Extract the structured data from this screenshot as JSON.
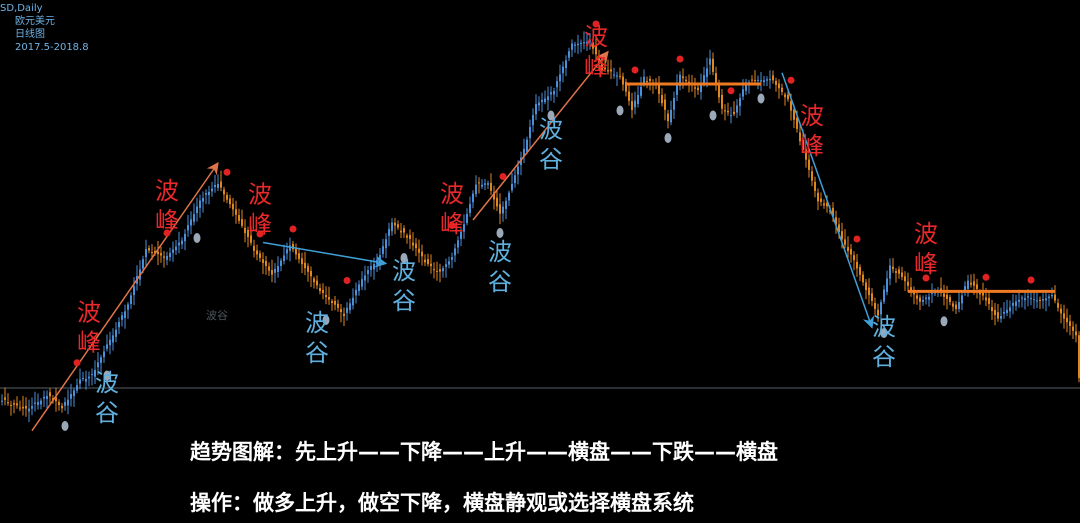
{
  "header": {
    "symbol": "SD,Daily",
    "name": "欧元美元",
    "chart_kind": "日线图",
    "period": "2017.5-2018.8"
  },
  "captions": {
    "line1": "趋势图解：先上升——下降——上升——横盘——下跌——横盘",
    "line2": "操作：做多上升，做空下降，横盘静观或选择横盘系统"
  },
  "colors": {
    "background": "#000000",
    "bull_candle": "#4a90d9",
    "bear_candle": "#e0861f",
    "peak_label": "#e8282a",
    "trough_label": "#5fb0de",
    "uptrend_arrow": "#e0744a",
    "downtrend_arrow": "#3f9fd6",
    "range_line": "#f07a22",
    "peak_dot": "#e02222",
    "trough_dot": "#9aa8b8",
    "baseline": "#8fa0b0"
  },
  "chart_data": {
    "type": "candlestick",
    "price_path": [
      {
        "i": 0,
        "p": 400
      },
      {
        "i": 8,
        "p": 410
      },
      {
        "i": 15,
        "p": 395
      },
      {
        "i": 20,
        "p": 408
      },
      {
        "i": 26,
        "p": 380
      },
      {
        "i": 30,
        "p": 375
      },
      {
        "i": 36,
        "p": 340
      },
      {
        "i": 42,
        "p": 305
      },
      {
        "i": 48,
        "p": 250
      },
      {
        "i": 54,
        "p": 258
      },
      {
        "i": 60,
        "p": 240
      },
      {
        "i": 66,
        "p": 200
      },
      {
        "i": 72,
        "p": 183
      },
      {
        "i": 78,
        "p": 215
      },
      {
        "i": 84,
        "p": 250
      },
      {
        "i": 90,
        "p": 275
      },
      {
        "i": 96,
        "p": 245
      },
      {
        "i": 100,
        "p": 265
      },
      {
        "i": 106,
        "p": 290
      },
      {
        "i": 110,
        "p": 302
      },
      {
        "i": 114,
        "p": 315
      },
      {
        "i": 120,
        "p": 278
      },
      {
        "i": 126,
        "p": 255
      },
      {
        "i": 130,
        "p": 222
      },
      {
        "i": 136,
        "p": 240
      },
      {
        "i": 142,
        "p": 265
      },
      {
        "i": 146,
        "p": 272
      },
      {
        "i": 150,
        "p": 258
      },
      {
        "i": 154,
        "p": 225
      },
      {
        "i": 158,
        "p": 185
      },
      {
        "i": 162,
        "p": 182
      },
      {
        "i": 166,
        "p": 215
      },
      {
        "i": 170,
        "p": 185
      },
      {
        "i": 174,
        "p": 150
      },
      {
        "i": 178,
        "p": 105
      },
      {
        "i": 184,
        "p": 90
      },
      {
        "i": 190,
        "p": 45
      },
      {
        "i": 196,
        "p": 40
      },
      {
        "i": 200,
        "p": 70
      },
      {
        "i": 206,
        "p": 75
      },
      {
        "i": 210,
        "p": 110
      },
      {
        "i": 214,
        "p": 78
      },
      {
        "i": 218,
        "p": 85
      },
      {
        "i": 222,
        "p": 120
      },
      {
        "i": 226,
        "p": 75
      },
      {
        "i": 232,
        "p": 90
      },
      {
        "i": 236,
        "p": 60
      },
      {
        "i": 240,
        "p": 110
      },
      {
        "i": 244,
        "p": 115
      },
      {
        "i": 248,
        "p": 82
      },
      {
        "i": 252,
        "p": 80
      },
      {
        "i": 256,
        "p": 78
      },
      {
        "i": 262,
        "p": 100
      },
      {
        "i": 266,
        "p": 140
      },
      {
        "i": 272,
        "p": 200
      },
      {
        "i": 276,
        "p": 210
      },
      {
        "i": 280,
        "p": 240
      },
      {
        "i": 284,
        "p": 260
      },
      {
        "i": 288,
        "p": 290
      },
      {
        "i": 292,
        "p": 315
      },
      {
        "i": 296,
        "p": 265
      },
      {
        "i": 300,
        "p": 278
      },
      {
        "i": 306,
        "p": 302
      },
      {
        "i": 312,
        "p": 290
      },
      {
        "i": 318,
        "p": 310
      },
      {
        "i": 322,
        "p": 280
      },
      {
        "i": 328,
        "p": 300
      },
      {
        "i": 332,
        "p": 320
      },
      {
        "i": 338,
        "p": 300
      },
      {
        "i": 342,
        "p": 296
      },
      {
        "i": 346,
        "p": 300
      },
      {
        "i": 350,
        "p": 295
      },
      {
        "i": 354,
        "p": 318
      },
      {
        "i": 358,
        "p": 335
      },
      {
        "i": 359,
        "p": 378
      }
    ],
    "peaks": [
      {
        "label_top": "波",
        "label_bottom": "峰",
        "index": 29
      },
      {
        "label_top": "波",
        "label_bottom": "峰",
        "index": 55
      },
      {
        "label_top": "波",
        "label_bottom": "峰",
        "index": 86
      },
      {
        "label_top": "波",
        "label_bottom": "峰",
        "index": 150
      },
      {
        "label_top": "波",
        "label_bottom": "峰",
        "index": 198
      },
      {
        "label_top": "波",
        "label_bottom": "峰",
        "index": 270
      },
      {
        "label_top": "波",
        "label_bottom": "峰",
        "index": 308
      }
    ],
    "troughs": [
      {
        "label_top": "波",
        "label_bottom": "谷",
        "index": 35
      },
      {
        "label_top": "波",
        "label_bottom": "谷",
        "index": 105
      },
      {
        "label_top": "波",
        "label_bottom": "谷",
        "index": 134
      },
      {
        "label_top": "波",
        "label_bottom": "谷",
        "index": 166
      },
      {
        "label_top": "波",
        "label_bottom": "谷",
        "index": 183
      },
      {
        "label_top": "波",
        "label_bottom": "谷",
        "index": 294
      }
    ],
    "faint_label": "波谷",
    "trends": [
      {
        "kind": "up",
        "from_index": 10,
        "to_index": 72
      },
      {
        "kind": "down",
        "from_index": 87,
        "to_index": 128
      },
      {
        "kind": "up",
        "from_index": 157,
        "to_index": 202
      },
      {
        "kind": "range",
        "from_index": 208,
        "to_index": 253
      },
      {
        "kind": "down",
        "from_index": 260,
        "to_index": 290
      },
      {
        "kind": "range",
        "from_index": 302,
        "to_index": 351
      }
    ]
  }
}
